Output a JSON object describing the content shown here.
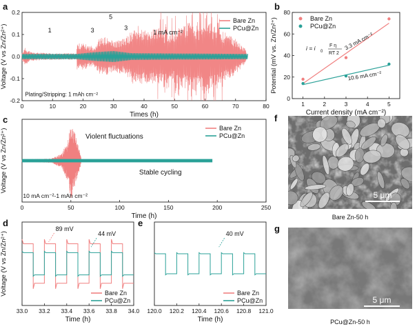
{
  "chart_data": [
    {
      "panel": "a",
      "type": "line",
      "xlabel": "Times (h)",
      "ylabel": "Voltage (V vs Zn/Zn²⁺)",
      "xlim": [
        0,
        80
      ],
      "ylim": [
        -0.2,
        0.2
      ],
      "xticks": [
        0,
        10,
        20,
        30,
        40,
        50,
        60,
        70,
        80
      ],
      "yticks": [
        -0.2,
        -0.1,
        0.0,
        0.1,
        0.2
      ],
      "yticklabels": [
        "-0.2",
        "-0.1",
        "0.0",
        "0.1",
        "0.2"
      ],
      "legend_position": "top-right",
      "series": [
        {
          "name": "Bare Zn",
          "color": "#f08080",
          "envelope": [
            [
              0,
              0.02
            ],
            [
              1,
              0.04
            ],
            [
              3,
              0.02
            ],
            [
              10,
              0.015
            ],
            [
              17.9,
              0.015
            ],
            [
              18,
              0.06
            ],
            [
              20,
              0.06
            ],
            [
              22,
              0.05
            ],
            [
              24,
              0.05
            ],
            [
              25,
              0.08
            ],
            [
              27,
              0.09
            ],
            [
              29,
              0.08
            ],
            [
              30,
              0.07
            ],
            [
              33,
              0.08
            ],
            [
              35,
              0.1
            ],
            [
              36,
              0.12
            ],
            [
              38,
              0.14
            ],
            [
              40,
              0.12
            ],
            [
              44,
              0.13
            ],
            [
              48,
              0.1
            ],
            [
              52,
              0.14
            ],
            [
              55,
              0.16
            ],
            [
              58,
              0.12
            ],
            [
              60,
              0.2
            ],
            [
              62,
              0.15
            ],
            [
              65,
              0.12
            ],
            [
              68,
              0.1
            ],
            [
              70,
              0.08
            ],
            [
              72,
              0.05
            ],
            [
              73.5,
              0.03
            ]
          ]
        },
        {
          "name": "PCu@Zn",
          "color": "#2aa198",
          "envelope": [
            [
              0,
              0.012
            ],
            [
              18,
              0.012
            ],
            [
              24,
              0.02
            ],
            [
              30,
              0.025
            ],
            [
              36,
              0.015
            ],
            [
              74,
              0.012
            ]
          ]
        }
      ],
      "annotations": [
        {
          "text": "1",
          "x": 8.5,
          "y": 0.11
        },
        {
          "text": "3",
          "x": 22.5,
          "y": 0.11
        },
        {
          "text": "5",
          "x": 28.5,
          "y": 0.17
        },
        {
          "text": "3",
          "x": 33.5,
          "y": 0.12
        },
        {
          "text": "1 mA cm⁻²",
          "x": 43,
          "y": 0.1
        },
        {
          "text": "Plating/Stripping: 1 mAh cm⁻²",
          "x": 1,
          "y": -0.18
        }
      ]
    },
    {
      "panel": "b",
      "type": "scatter",
      "xlabel": "Current density (mA cm⁻²)",
      "ylabel": "Potential (mV vs. Zn/Zn²⁺)",
      "xlim": [
        0.5,
        5.5
      ],
      "ylim": [
        0,
        80
      ],
      "xticks": [
        1,
        2,
        3,
        4,
        5
      ],
      "yticks": [
        0,
        20,
        40,
        60,
        80
      ],
      "legend_position": "top-left",
      "series": [
        {
          "name": "Bare Zn",
          "color": "#f08080",
          "x": [
            1,
            3,
            5
          ],
          "y": [
            18,
            38,
            74
          ],
          "fit": [
            [
              1,
              14
            ],
            [
              5,
              70
            ]
          ],
          "fit_label": "3.3 mA cm⁻²"
        },
        {
          "name": "PCu@Zn",
          "color": "#2aa198",
          "x": [
            1,
            3,
            5
          ],
          "y": [
            14,
            21,
            32
          ],
          "fit": [
            [
              1,
              13
            ],
            [
              5,
              31
            ]
          ],
          "fit_label": "10.6 mA cm⁻²"
        }
      ],
      "equation": {
        "lhs": "i = i",
        "sub": "0",
        "num": "F η",
        "den": "RT 2"
      }
    },
    {
      "panel": "c",
      "type": "line",
      "xlabel": "Time (h)",
      "ylabel": "Voltage (V vs Zn/Zn²⁺)",
      "xlim": [
        0,
        250
      ],
      "ylim": [
        -0.3,
        0.3
      ],
      "xticks": [
        0,
        50,
        100,
        150,
        200,
        250
      ],
      "legend_position": "top-right",
      "series": [
        {
          "name": "Bare Zn",
          "color": "#f08080",
          "envelope": [
            [
              0,
              0.01
            ],
            [
              30,
              0.015
            ],
            [
              40,
              0.05
            ],
            [
              45,
              0.12
            ],
            [
              48,
              0.2
            ],
            [
              50,
              0.28
            ],
            [
              52,
              0.25
            ],
            [
              55,
              0.18
            ],
            [
              58,
              0.1
            ],
            [
              60,
              0.04
            ],
            [
              61,
              0.0
            ]
          ]
        },
        {
          "name": "PCu@Zn",
          "color": "#2aa198",
          "envelope": [
            [
              0,
              0.012
            ],
            [
              195,
              0.012
            ]
          ]
        }
      ],
      "annotations": [
        {
          "text": "Violent fluctuations",
          "x": 65,
          "y": 0.16
        },
        {
          "text": "Stable cycling",
          "x": 120,
          "y": -0.1
        },
        {
          "text": "10 mA cm⁻²-1 mAh cm⁻²",
          "x": 1,
          "y": -0.27
        }
      ]
    },
    {
      "panel": "d",
      "type": "line",
      "xlabel": "Time (h)",
      "ylabel": "Voltage (V vs Zn/Zn²⁺)",
      "xlim": [
        33.0,
        34.0
      ],
      "ylim": [
        -0.15,
        0.15
      ],
      "xticks": [
        33.0,
        33.2,
        33.4,
        33.6,
        33.8,
        34.0
      ],
      "xticklabels": [
        "33.0",
        "33.2",
        "33.4",
        "33.6",
        "33.8",
        "34.0"
      ],
      "period_h": 0.2,
      "legend_position": "bottom-right",
      "series": [
        {
          "name": "Bare Zn",
          "color": "#f08080",
          "high": 0.088,
          "low": -0.09,
          "knee_high": 0.072,
          "knee_low": -0.07
        },
        {
          "name": "PCu@Zn",
          "color": "#2aa198",
          "high": 0.045,
          "low": -0.045,
          "knee_high": 0.04,
          "knee_low": -0.04
        }
      ],
      "annotations": [
        {
          "text": "89 mV",
          "x": 33.3,
          "y": 0.118,
          "color": "#f08080"
        },
        {
          "text": "44 mV",
          "x": 33.68,
          "y": 0.1,
          "color": "#2aa198"
        }
      ]
    },
    {
      "panel": "e",
      "type": "line",
      "xlabel": "Time (h)",
      "ylabel": "",
      "xlim": [
        120.0,
        121.0
      ],
      "ylim": [
        -0.15,
        0.15
      ],
      "xticks": [
        120.0,
        120.2,
        120.4,
        120.6,
        120.8,
        121.0
      ],
      "xticklabels": [
        "120.0",
        "120.2",
        "120.4",
        "120.6",
        "120.8",
        "121.0"
      ],
      "period_h": 0.2,
      "legend_position": "bottom-right",
      "series": [
        {
          "name": "Bare Zn",
          "color": "#f08080"
        },
        {
          "name": "PCu@Zn",
          "color": "#2aa198",
          "high": 0.04,
          "low": -0.04,
          "knee_high": 0.036,
          "knee_low": -0.036
        }
      ],
      "annotations": [
        {
          "text": "40 mV",
          "x": 120.64,
          "y": 0.1,
          "color": "#2aa198"
        }
      ]
    }
  ],
  "micrographs": [
    {
      "panel": "f",
      "caption": "Bare Zn-50 h",
      "scale_bar": "5 μm"
    },
    {
      "panel": "g",
      "caption": "PCu@Zn-50 h",
      "scale_bar": "5 μm"
    }
  ]
}
